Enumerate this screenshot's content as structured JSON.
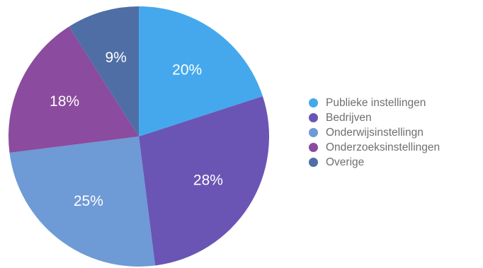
{
  "chart_data": {
    "type": "pie",
    "title": "",
    "start_angle_deg": 0,
    "direction": "clockwise",
    "slices": [
      {
        "label": "Publieke instellingen",
        "value": 20,
        "value_label": "20%",
        "color": "#45a8ec"
      },
      {
        "label": "Bedrijven",
        "value": 28,
        "value_label": "28%",
        "color": "#6a55b5"
      },
      {
        "label": "Onderwijsinstellingn",
        "value": 25,
        "value_label": "25%",
        "color": "#6e9ad6"
      },
      {
        "label": "Onderzoeksinstellingen",
        "value": 18,
        "value_label": "18%",
        "color": "#8b4b9e"
      },
      {
        "label": "Overige",
        "value": 9,
        "value_label": "9%",
        "color": "#4f6ea5"
      }
    ],
    "legend_position": "right"
  }
}
